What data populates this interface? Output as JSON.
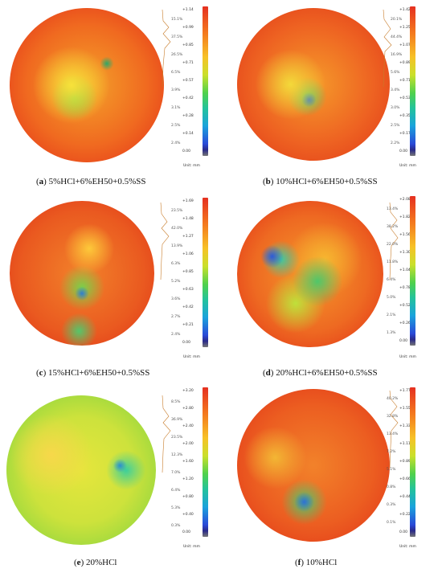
{
  "unit_label": "Unit: mm",
  "panels": [
    {
      "label": "a",
      "caption": " 5%HCl+6%EH50+0.5%SS",
      "ticks": [
        "+1.14",
        "+0.99",
        "+0.85",
        "+0.71",
        "+0.57",
        "+0.42",
        "+0.28",
        "+0.14",
        "0.00"
      ],
      "pcts": [
        "15.1%",
        "37.5%",
        "26.5%",
        "6.5%",
        "3.9%",
        "3.1%",
        "2.5%",
        "2.4%"
      ]
    },
    {
      "label": "b",
      "caption": " 10%HCl+6%EH50+0.5%SS",
      "ticks": [
        "+1.42",
        "+1.25",
        "+1.07",
        "+0.89",
        "+0.71",
        "+0.53",
        "+0.35",
        "+0.17",
        "0.00"
      ],
      "pcts": [
        "20.1%",
        "44.4%",
        "16.9%",
        "5.6%",
        "3.4%",
        "3.0%",
        "2.5%",
        "2.2%"
      ]
    },
    {
      "label": "c",
      "caption": " 15%HCl+6%EH50+0.5%SS",
      "ticks": [
        "+1.69",
        "+1.48",
        "+1.27",
        "+1.06",
        "+0.85",
        "+0.63",
        "+0.42",
        "+0.21",
        "0.00"
      ],
      "pcts": [
        "23.5%",
        "42.0%",
        "13.9%",
        "6.3%",
        "5.2%",
        "3.6%",
        "2.7%",
        "2.4%"
      ]
    },
    {
      "label": "d",
      "caption": " 20%HCl+6%EH50+0.5%SS",
      "ticks": [
        "+2.08",
        "+1.82",
        "+1.56",
        "+1.30",
        "+1.04",
        "+0.78",
        "+0.52",
        "+0.26",
        "0.00"
      ],
      "pcts": [
        "13.4%",
        "38.2%",
        "22.0%",
        "11.8%",
        "6.4%",
        "5.0%",
        "2.1%",
        "1.3%"
      ]
    },
    {
      "label": "e",
      "caption": " 20%HCl",
      "ticks": [
        "+3.20",
        "+2.80",
        "+2.40",
        "+2.00",
        "+1.60",
        "+1.20",
        "+0.80",
        "+0.40",
        "0.00"
      ],
      "pcts": [
        "8.5%",
        "36.9%",
        "23.5%",
        "12.3%",
        "7.0%",
        "6.4%",
        "5.3%",
        "0.3%"
      ]
    },
    {
      "label": "f",
      "caption": " 10%HCl",
      "ticks": [
        "+1.77",
        "+1.55",
        "+1.33",
        "+1.11",
        "+0.89",
        "+0.66",
        "+0.44",
        "+0.22",
        "0.00"
      ],
      "pcts": [
        "40.2%",
        "32.8%",
        "13.4%",
        "7.2%",
        "5.1%",
        "0.8%",
        "0.3%",
        "0.1%"
      ]
    }
  ]
}
